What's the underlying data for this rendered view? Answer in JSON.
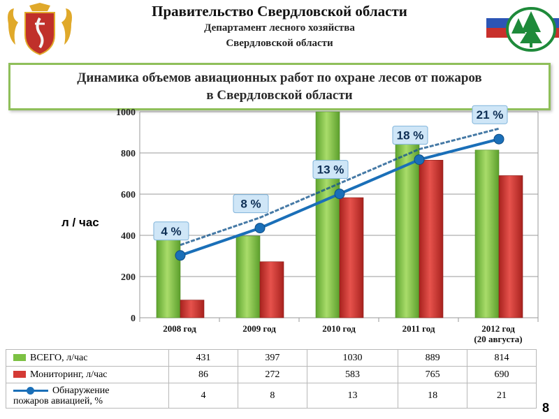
{
  "header": {
    "title": "Правительство Свердловской области",
    "dept_line1": "Департамент лесного хозяйства",
    "dept_line2": "Свердловской области"
  },
  "chart_title": {
    "line1": "Динамика объемов авиационных работ по охране лесов от пожаров",
    "line2": "в Свердловской области"
  },
  "colors": {
    "green": "#7cc143",
    "red": "#d43a35",
    "blue": "#1a6fb8",
    "frame": "#8fbf5a"
  },
  "chart_data": {
    "type": "bar",
    "categories": [
      "2008 год",
      "2009 год",
      "2010 год",
      "2011 год",
      "2012 год (20 августа)"
    ],
    "category_labels": [
      [
        "2008 год"
      ],
      [
        "2009 год"
      ],
      [
        "2010 год"
      ],
      [
        "2011 год"
      ],
      [
        "2012 год",
        "(20 августа)"
      ]
    ],
    "ylabel": "л / час",
    "ylim": [
      0,
      1000
    ],
    "yticks": [
      0,
      200,
      400,
      600,
      800,
      1000
    ],
    "grid": true,
    "series": [
      {
        "name": "ВСЕГО, л/час",
        "type": "bar",
        "values": [
          431,
          397,
          1030,
          889,
          814
        ]
      },
      {
        "name": "Мониторинг, л/час",
        "type": "bar",
        "values": [
          86,
          272,
          583,
          765,
          690
        ]
      },
      {
        "name": "Обнаружение пожаров авиацией, %",
        "type": "line",
        "values": [
          4,
          8,
          13,
          18,
          21
        ],
        "labels": [
          "4 %",
          "8 %",
          "13 %",
          "18 %",
          "21 %"
        ]
      }
    ]
  },
  "table": {
    "rows": [
      {
        "label": "ВСЕГО, л/час",
        "values": [
          "431",
          "397",
          "1030",
          "889",
          "814"
        ]
      },
      {
        "label": "Мониторинг, л/час",
        "values": [
          "86",
          "272",
          "583",
          "765",
          "690"
        ]
      },
      {
        "label_line1": "Обнаружение",
        "label_line2": "пожаров авиацией, %",
        "values": [
          "4",
          "8",
          "13",
          "18",
          "21"
        ]
      }
    ]
  },
  "page_number": "8"
}
